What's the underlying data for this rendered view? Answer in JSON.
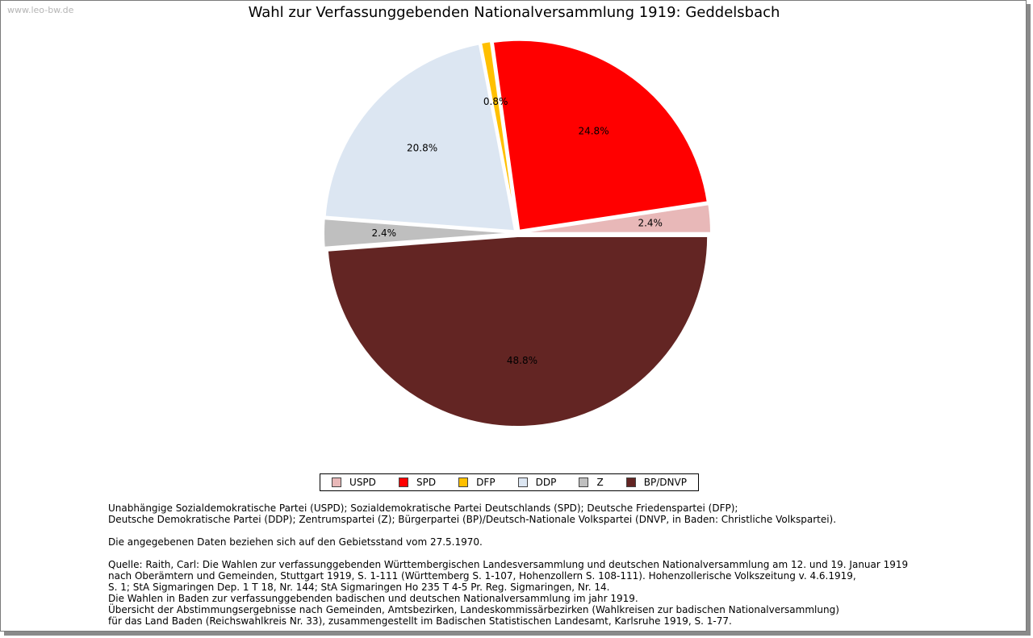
{
  "watermark": "www.leo-bw.de",
  "chart_data": {
    "type": "pie",
    "title": "Wahl zur Verfassunggebenden Nationalversammlung 1919: Geddelsbach",
    "slices": [
      {
        "label": "USPD",
        "value": 2.4,
        "display": "2.4%",
        "color": "#e8b8b8"
      },
      {
        "label": "SPD",
        "value": 24.8,
        "display": "24.8%",
        "color": "#ff0000"
      },
      {
        "label": "DFP",
        "value": 0.8,
        "display": "0.8%",
        "color": "#ffc000"
      },
      {
        "label": "DDP",
        "value": 20.8,
        "display": "20.8%",
        "color": "#dce6f2"
      },
      {
        "label": "Z",
        "value": 2.4,
        "display": "2.4%",
        "color": "#bfbfbf"
      },
      {
        "label": "BP/DNVP",
        "value": 48.8,
        "display": "48.8%",
        "color": "#632523"
      }
    ],
    "legend_position": "bottom"
  },
  "notes": {
    "parties_1": "Unabhängige Sozialdemokratische Partei (USPD); Sozialdemokratische Partei Deutschlands (SPD); Deutsche Friedenspartei (DFP);",
    "parties_2": "Deutsche Demokratische Partei (DDP); Zentrumspartei (Z); Bürgerpartei (BP)/Deutsch-Nationale Volkspartei (DNVP, in Baden: Christliche Volkspartei).",
    "territory": "Die angegebenen Daten beziehen sich auf den Gebietsstand vom 27.5.1970.",
    "source_1": "Quelle: Raith, Carl: Die Wahlen zur verfassunggebenden Württembergischen Landesversammlung und deutschen Nationalversammlung am 12. und 19. Januar 1919",
    "source_2": "nach Oberämtern und Gemeinden, Stuttgart 1919, S. 1-111 (Württemberg S. 1-107, Hohenzollern S. 108-111). Hohenzollerische Volkszeitung v. 4.6.1919,",
    "source_3": "S. 1; StA Sigmaringen Dep. 1 T 18, Nr. 144; StA Sigmaringen Ho 235 T 4-5 Pr. Reg. Sigmaringen, Nr. 14.",
    "source_4": "Die Wahlen in Baden zur verfassunggebenden badischen und deutschen Nationalversammlung im jahr 1919.",
    "source_5": "Übersicht der Abstimmungsergebnisse nach Gemeinden, Amtsbezirken, Landeskommissärbezirken (Wahlkreisen zur badischen Nationalversammlung)",
    "source_6": "für das Land Baden (Reichswahlkreis Nr. 33), zusammengestellt im Badischen Statistischen Landesamt, Karlsruhe 1919, S. 1-77."
  }
}
